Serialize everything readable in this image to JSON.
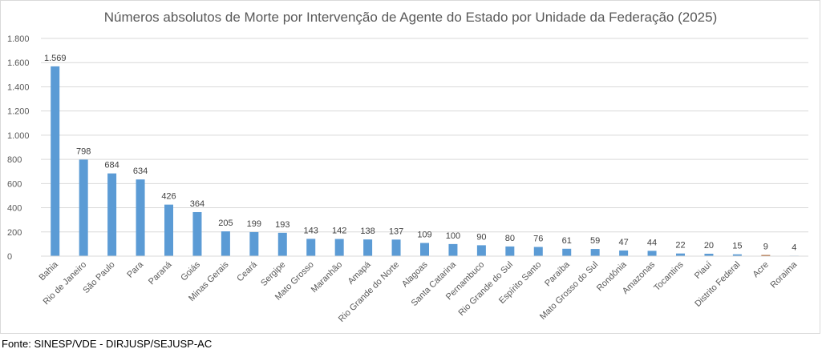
{
  "chart_data": {
    "type": "bar",
    "title": "Números absolutos de Morte por Intervenção de Agente do Estado por Unidade da Federação (2025)",
    "xlabel": "",
    "ylabel": "",
    "ylim": [
      0,
      1800
    ],
    "yticks": [
      0,
      200,
      400,
      600,
      800,
      1000,
      1200,
      1400,
      1600,
      1800
    ],
    "ytick_labels": [
      "0",
      "200",
      "400",
      "600",
      "800",
      "1.000",
      "1.200",
      "1.400",
      "1.600",
      "1.800"
    ],
    "grid": true,
    "legend": "none",
    "bar_color": "#5b9bd5",
    "highlight_color": "#9e480e",
    "highlight_category": "Acre",
    "categories": [
      "Bahia",
      "Rio de Janeiro",
      "São Paulo",
      "Para",
      "Paraná",
      "Goiás",
      "Minas Gerais",
      "Ceará",
      "Sergipe",
      "Mato Grosso",
      "Maranhão",
      "Amapá",
      "Rio Grande do Norte",
      "Alagoas",
      "Santa Catarina",
      "Pernambuco",
      "Rio Grande do Sul",
      "Espírito Santo",
      "Paraíba",
      "Mato Grosso do Sul",
      "Rondônia",
      "Amazonas",
      "Tocantins",
      "Piauí",
      "Distrito Federal",
      "Acre",
      "Roraima"
    ],
    "values": [
      1569,
      798,
      684,
      634,
      426,
      364,
      205,
      199,
      193,
      143,
      142,
      138,
      137,
      109,
      100,
      90,
      80,
      76,
      61,
      59,
      47,
      44,
      22,
      20,
      15,
      9,
      4
    ],
    "value_labels": [
      "1.569",
      "798",
      "684",
      "634",
      "426",
      "364",
      "205",
      "199",
      "193",
      "143",
      "142",
      "138",
      "137",
      "109",
      "100",
      "90",
      "80",
      "76",
      "61",
      "59",
      "47",
      "44",
      "22",
      "20",
      "15",
      "9",
      "4"
    ]
  },
  "footer": {
    "source": "Fonte: SINESP/VDE - DIRJUSP/SEJUSP-AC"
  }
}
